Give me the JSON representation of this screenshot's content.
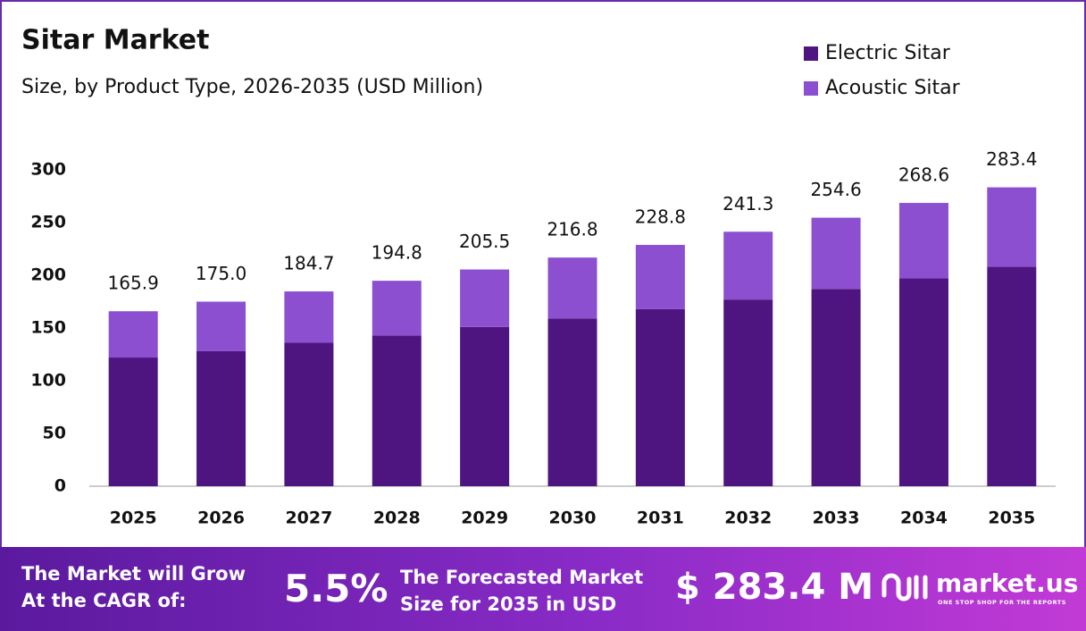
{
  "chart_data": {
    "type": "stacked_bar",
    "title": "Sitar Market",
    "subtitle": "Size, by Product Type, 2026-2035 (USD Million)",
    "categories": [
      "2025",
      "2026",
      "2027",
      "2028",
      "2029",
      "2030",
      "2031",
      "2032",
      "2033",
      "2034",
      "2035"
    ],
    "series": [
      {
        "name": "Electric Sitar",
        "color": "#4e1581",
        "values": [
          122,
          128,
          136,
          143,
          151,
          159,
          168,
          177,
          187,
          197,
          208
        ]
      },
      {
        "name": "Acoustic Sitar",
        "color": "#8b4fd0",
        "values": [
          43.9,
          47,
          48.7,
          51.8,
          54.5,
          57.8,
          60.8,
          64.3,
          67.6,
          71.6,
          75.4
        ]
      }
    ],
    "totals": [
      165.9,
      175,
      184.7,
      194.8,
      205.5,
      216.8,
      228.8,
      241.3,
      254.6,
      268.6,
      283.4
    ],
    "total_labels": [
      "165.9",
      "175.0",
      "184.7",
      "194.8",
      "205.5",
      "216.8",
      "228.8",
      "241.3",
      "254.6",
      "268.6",
      "283.4"
    ],
    "ylim": [
      0,
      300
    ],
    "yticks": [
      0,
      50,
      100,
      150,
      200,
      250,
      300
    ],
    "grid": false,
    "legend": "top-right"
  },
  "footer": {
    "cagr_text": [
      "The Market will Grow",
      "At the CAGR of:"
    ],
    "cagr": "5.5%",
    "forecast_text": [
      "The Forecasted Market",
      "Size for 2035 in USD"
    ],
    "forecast_value": "$ 283.4 M",
    "brand": "market.us",
    "tagline": "ONE STOP SHOP FOR THE REPORTS"
  }
}
